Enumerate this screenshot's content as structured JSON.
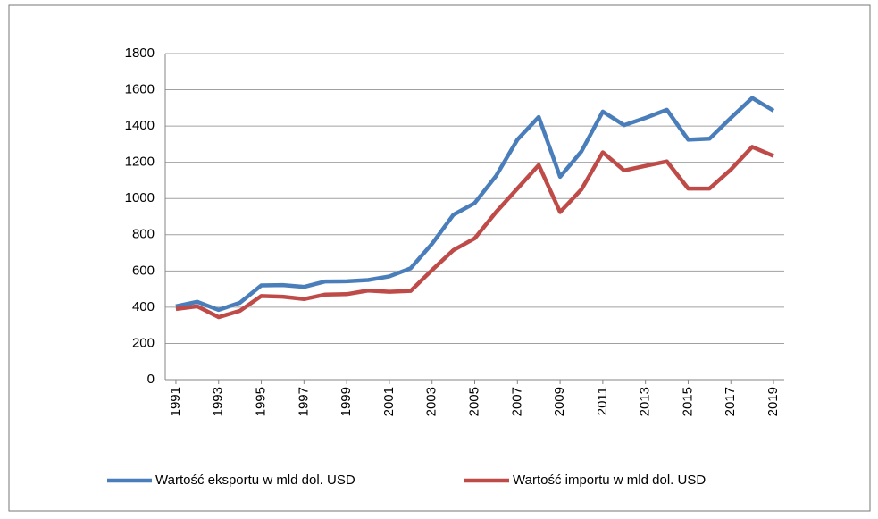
{
  "chart_data": {
    "type": "line",
    "x": [
      1991,
      1992,
      1993,
      1994,
      1995,
      1996,
      1997,
      1998,
      1999,
      2000,
      2001,
      2002,
      2003,
      2004,
      2005,
      2006,
      2007,
      2008,
      2009,
      2010,
      2011,
      2012,
      2013,
      2014,
      2015,
      2016,
      2017,
      2018,
      2019
    ],
    "series": [
      {
        "name": "Wartość eksportu w mld dol. USD",
        "color": "#4a7ebb",
        "values": [
          405,
          430,
          385,
          425,
          520,
          522,
          512,
          542,
          543,
          550,
          570,
          615,
          750,
          910,
          975,
          1125,
          1325,
          1450,
          1120,
          1260,
          1480,
          1405,
          1445,
          1490,
          1325,
          1330,
          1445,
          1555,
          1485
        ]
      },
      {
        "name": "Wartość importu w mld dol. USD",
        "color": "#be4b48",
        "values": [
          390,
          405,
          345,
          380,
          462,
          458,
          445,
          470,
          472,
          492,
          485,
          490,
          605,
          715,
          780,
          925,
          1055,
          1185,
          925,
          1050,
          1255,
          1155,
          1180,
          1205,
          1055,
          1055,
          1160,
          1285,
          1235
        ]
      }
    ],
    "xlim": [
      1990.5,
      2019.5
    ],
    "xticks": [
      1991,
      1993,
      1995,
      1997,
      1999,
      2001,
      2003,
      2005,
      2007,
      2009,
      2011,
      2013,
      2015,
      2017,
      2019
    ],
    "ylim": [
      0,
      1800
    ],
    "yticks": [
      0,
      200,
      400,
      600,
      800,
      1000,
      1200,
      1400,
      1600,
      1800
    ],
    "grid": true,
    "legend": "bottom"
  }
}
